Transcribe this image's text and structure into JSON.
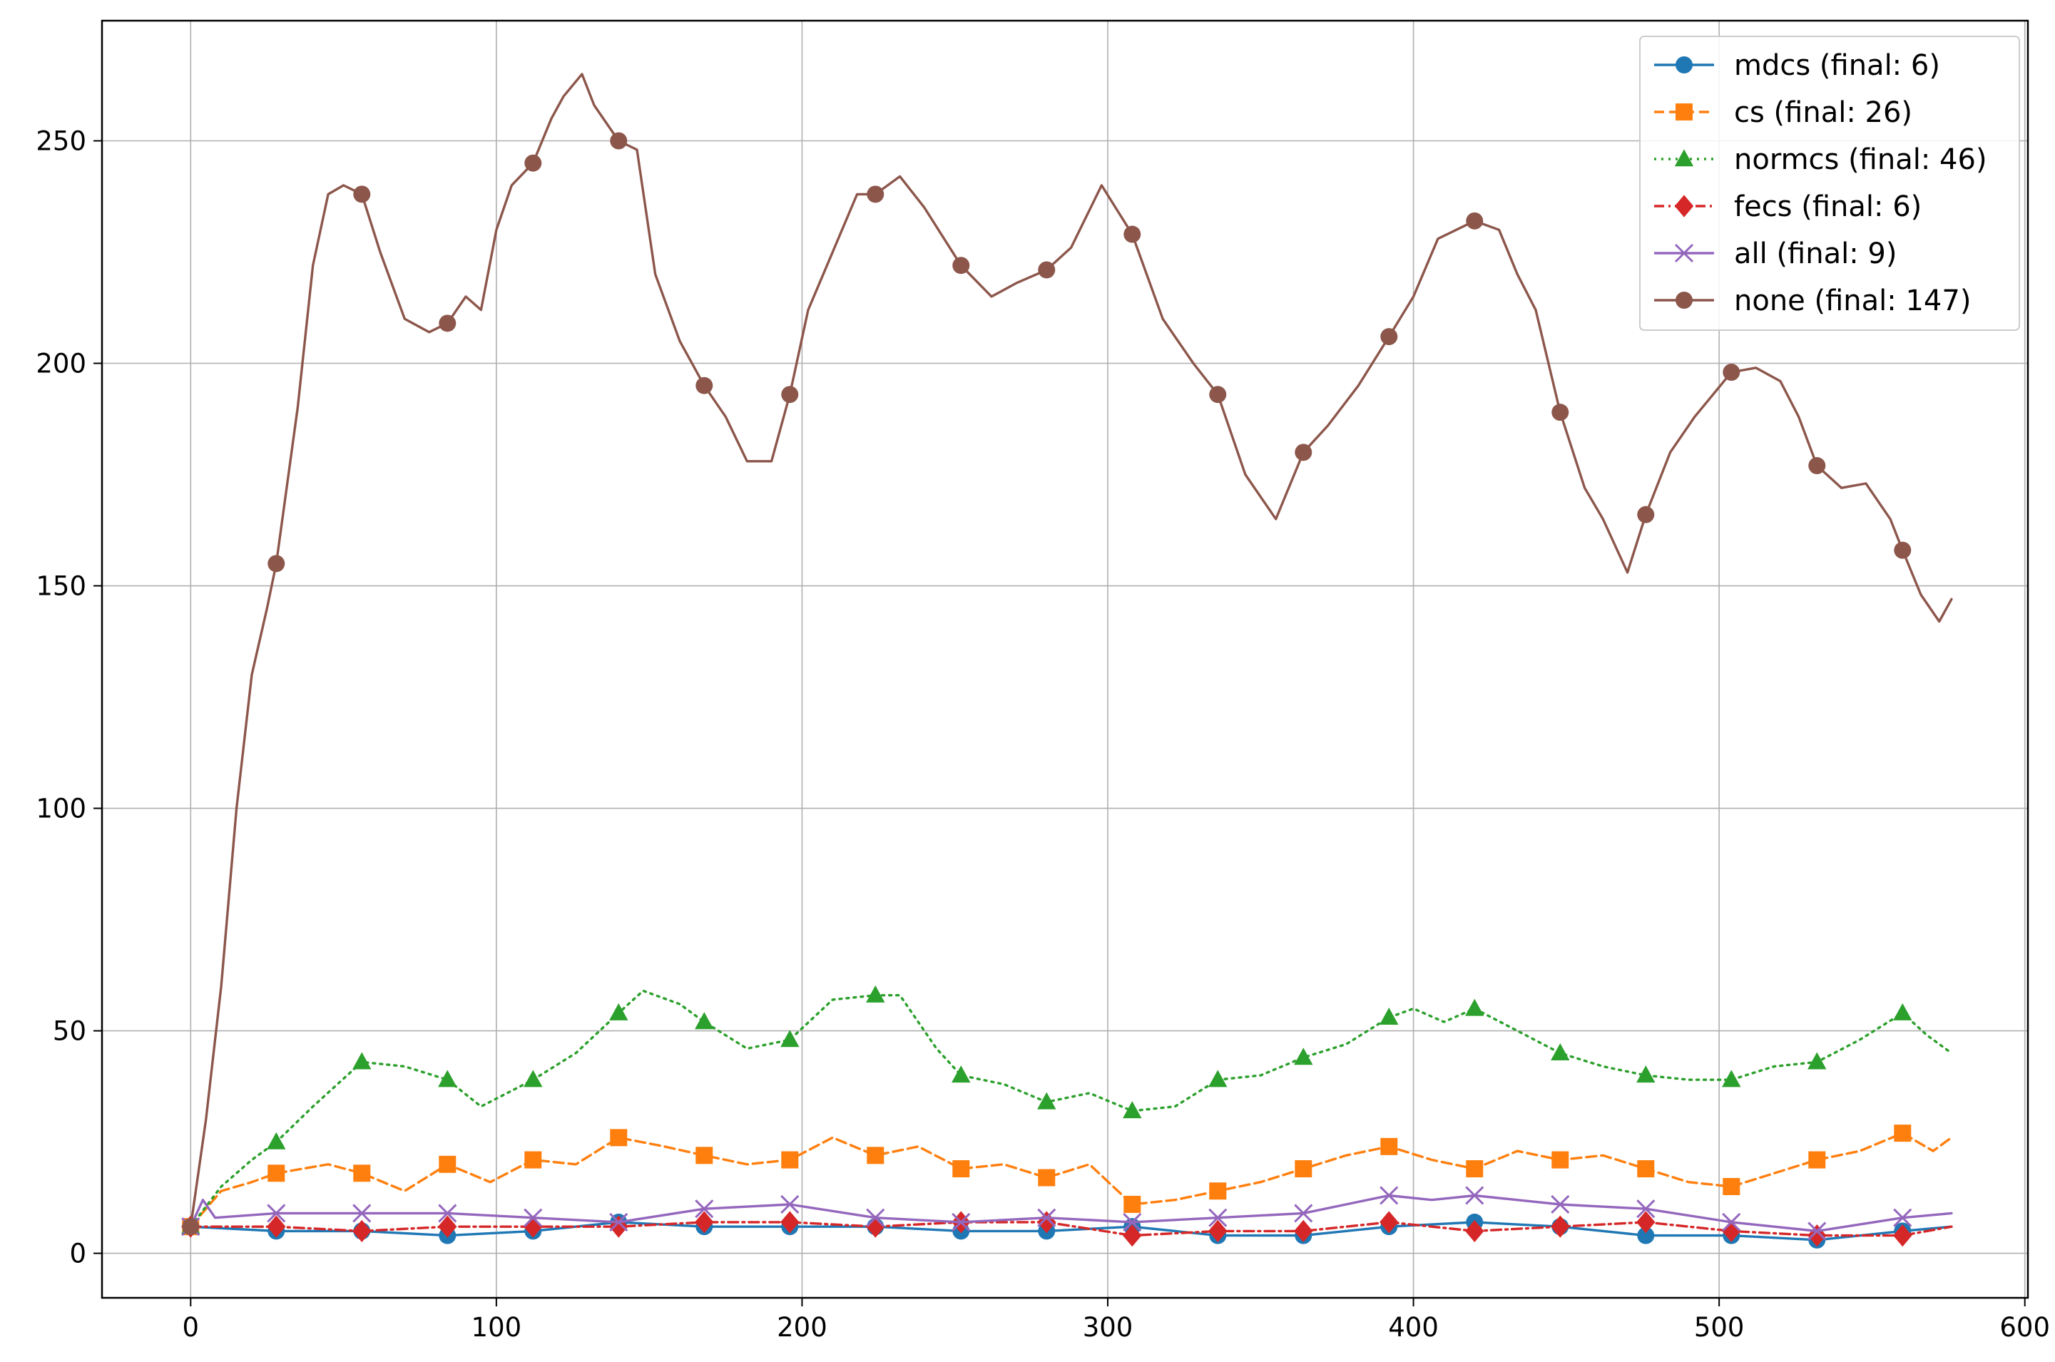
{
  "chart_data": {
    "type": "line",
    "title": "",
    "xlabel": "",
    "ylabel": "",
    "xlim": [
      -29,
      601
    ],
    "ylim": [
      -10,
      277
    ],
    "xticks": [
      0,
      100,
      200,
      300,
      400,
      500,
      600
    ],
    "yticks": [
      0,
      50,
      100,
      150,
      200,
      250
    ],
    "xtick_labels": [
      "0",
      "100",
      "200",
      "300",
      "400",
      "500",
      "600"
    ],
    "ytick_labels": [
      "0",
      "50",
      "100",
      "150",
      "200",
      "250"
    ],
    "grid": true,
    "legend_position": "top-right",
    "marker_every": 28,
    "series": [
      {
        "name": "mdcs (final: 6)",
        "color": "#1f77b4",
        "dash": "solid",
        "marker": "circle",
        "x": [
          0,
          28,
          56,
          84,
          112,
          140,
          168,
          196,
          224,
          252,
          280,
          308,
          336,
          364,
          392,
          420,
          448,
          476,
          504,
          532,
          560,
          576
        ],
        "y": [
          6,
          5,
          5,
          4,
          5,
          7,
          6,
          6,
          6,
          5,
          5,
          6,
          4,
          4,
          6,
          7,
          6,
          4,
          4,
          3,
          5,
          6
        ]
      },
      {
        "name": "cs (final: 26)",
        "color": "#ff7f0e",
        "dash": "dashed",
        "marker": "square",
        "x": [
          0,
          10,
          20,
          28,
          45,
          56,
          70,
          84,
          98,
          112,
          126,
          140,
          155,
          168,
          182,
          196,
          210,
          224,
          238,
          252,
          266,
          280,
          294,
          308,
          322,
          336,
          350,
          364,
          378,
          392,
          406,
          420,
          434,
          448,
          462,
          476,
          490,
          504,
          518,
          532,
          546,
          560,
          570,
          576
        ],
        "y": [
          6,
          14,
          16,
          18,
          20,
          18,
          14,
          20,
          16,
          21,
          20,
          26,
          24,
          22,
          20,
          21,
          26,
          22,
          24,
          19,
          20,
          17,
          20,
          11,
          12,
          14,
          16,
          19,
          22,
          24,
          21,
          19,
          23,
          21,
          22,
          19,
          16,
          15,
          18,
          21,
          23,
          27,
          23,
          26
        ]
      },
      {
        "name": "normcs (final: 46)",
        "color": "#2ca02c",
        "dash": "dotted",
        "marker": "triangle",
        "x": [
          0,
          10,
          20,
          28,
          40,
          56,
          70,
          84,
          95,
          112,
          126,
          140,
          148,
          160,
          168,
          182,
          196,
          210,
          224,
          232,
          244,
          252,
          266,
          280,
          294,
          308,
          322,
          336,
          350,
          364,
          378,
          392,
          400,
          410,
          420,
          434,
          448,
          462,
          476,
          490,
          504,
          518,
          532,
          546,
          560,
          568,
          576
        ],
        "y": [
          6,
          15,
          21,
          25,
          33,
          43,
          42,
          39,
          33,
          39,
          45,
          54,
          59,
          56,
          52,
          46,
          48,
          57,
          58,
          58,
          46,
          40,
          38,
          34,
          36,
          32,
          33,
          39,
          40,
          44,
          47,
          53,
          55,
          52,
          55,
          50,
          45,
          42,
          40,
          39,
          39,
          42,
          43,
          48,
          54,
          49,
          45
        ]
      },
      {
        "name": "fecs (final: 6)",
        "color": "#d62728",
        "dash": "dashdot",
        "marker": "diamond",
        "x": [
          0,
          28,
          56,
          84,
          112,
          140,
          168,
          196,
          224,
          252,
          280,
          308,
          336,
          364,
          392,
          420,
          448,
          476,
          504,
          532,
          560,
          576
        ],
        "y": [
          6,
          6,
          5,
          6,
          6,
          6,
          7,
          7,
          6,
          7,
          7,
          4,
          5,
          5,
          7,
          5,
          6,
          7,
          5,
          4,
          4,
          6
        ]
      },
      {
        "name": "all (final: 9)",
        "color": "#9467bd",
        "dash": "solid",
        "marker": "x",
        "x": [
          0,
          4,
          8,
          28,
          56,
          84,
          112,
          140,
          168,
          196,
          224,
          252,
          280,
          308,
          336,
          364,
          392,
          406,
          420,
          448,
          476,
          504,
          532,
          560,
          576
        ],
        "y": [
          6,
          12,
          8,
          9,
          9,
          9,
          8,
          7,
          10,
          11,
          8,
          7,
          8,
          7,
          8,
          9,
          13,
          12,
          13,
          11,
          10,
          7,
          5,
          8,
          9
        ]
      },
      {
        "name": "none (final: 147)",
        "color": "#8c564b",
        "dash": "solid",
        "marker": "circle",
        "x": [
          0,
          5,
          10,
          15,
          20,
          25,
          28,
          35,
          40,
          45,
          50,
          56,
          62,
          70,
          78,
          84,
          90,
          95,
          100,
          105,
          112,
          118,
          122,
          128,
          132,
          140,
          146,
          152,
          160,
          168,
          175,
          182,
          190,
          196,
          202,
          210,
          218,
          224,
          232,
          240,
          252,
          262,
          270,
          280,
          288,
          298,
          308,
          318,
          328,
          336,
          345,
          355,
          364,
          372,
          382,
          392,
          400,
          408,
          414,
          420,
          428,
          434,
          440,
          448,
          456,
          462,
          470,
          476,
          484,
          492,
          504,
          512,
          520,
          526,
          532,
          540,
          548,
          556,
          560,
          566,
          572,
          576
        ],
        "y": [
          6,
          30,
          60,
          100,
          130,
          145,
          155,
          190,
          222,
          238,
          240,
          238,
          225,
          210,
          207,
          209,
          215,
          212,
          230,
          240,
          245,
          255,
          260,
          265,
          258,
          250,
          248,
          220,
          205,
          195,
          188,
          178,
          178,
          193,
          212,
          225,
          238,
          238,
          242,
          235,
          222,
          215,
          218,
          221,
          226,
          240,
          229,
          210,
          200,
          193,
          175,
          165,
          180,
          186,
          195,
          206,
          215,
          228,
          230,
          232,
          230,
          220,
          212,
          189,
          172,
          165,
          153,
          166,
          180,
          188,
          198,
          199,
          196,
          188,
          177,
          172,
          173,
          165,
          158,
          148,
          142,
          147
        ]
      }
    ]
  }
}
